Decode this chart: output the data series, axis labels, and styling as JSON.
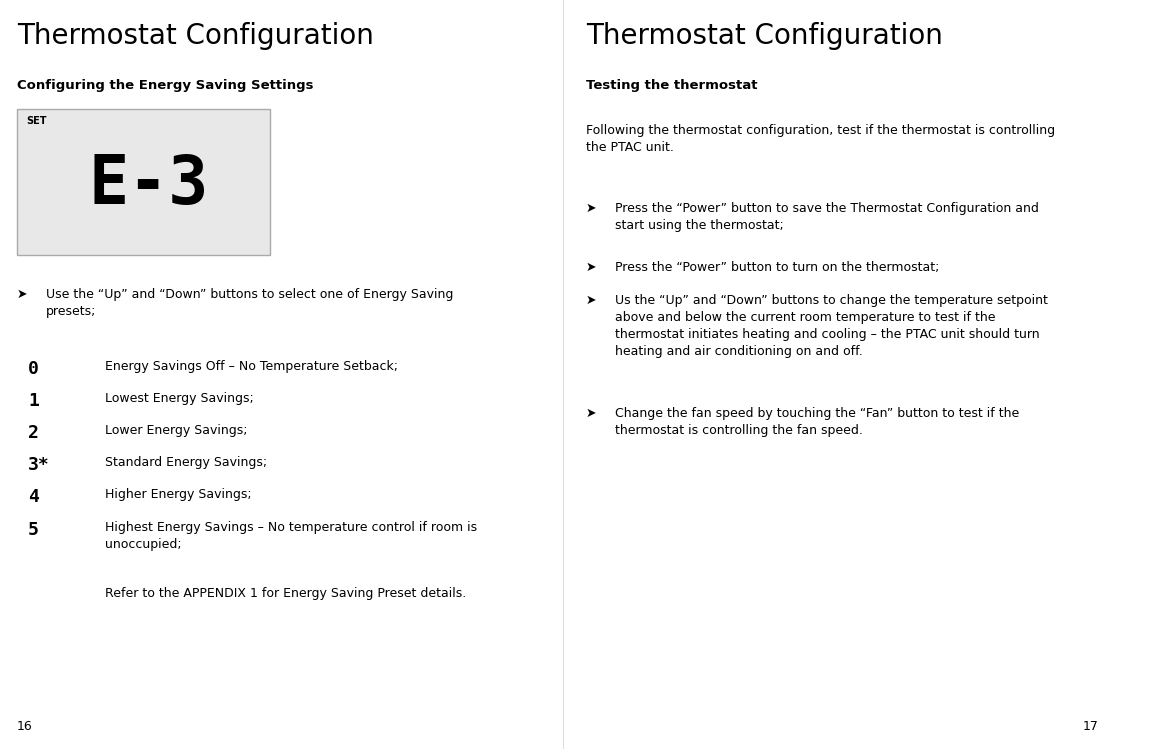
{
  "bg_color": "#ffffff",
  "left_title": "Thermostat Configuration",
  "left_subtitle": "Configuring the Energy Saving Settings",
  "display_bg": "#e8e8e8",
  "display_border": "#aaaaaa",
  "display_text": "E-3",
  "display_set_label": "SET",
  "left_bullet": "➤",
  "left_bullet_text": "Use the “Up” and “Down” buttons to select one of Energy Saving\npresets;",
  "presets": [
    {
      "num": "0",
      "desc": "Energy Savings Off – No Temperature Setback;"
    },
    {
      "num": "1",
      "desc": "Lowest Energy Savings;"
    },
    {
      "num": "2",
      "desc": "Lower Energy Savings;"
    },
    {
      "num": "3*",
      "desc": "Standard Energy Savings;"
    },
    {
      "num": "4",
      "desc": "Higher Energy Savings;"
    },
    {
      "num": "5",
      "desc": "Highest Energy Savings – No temperature control if room is\nunoccupied;"
    }
  ],
  "appendix_note": "Refer to the APPENDIX 1 for Energy Saving Preset details.",
  "page_num_left": "16",
  "right_title": "Thermostat Configuration",
  "right_subtitle": "Testing the thermostat",
  "right_intro": "Following the thermostat configuration, test if the thermostat is controlling\nthe PTAC unit.",
  "right_bullets": [
    "Press the “Power” button to save the Thermostat Configuration and\nstart using the thermostat;",
    "Press the “Power” button to turn on the thermostat;",
    "Us the “Up” and “Down” buttons to change the temperature setpoint\nabove and below the current room temperature to test if the\nthermostat initiates heating and cooling – the PTAC unit should turn\nheating and air conditioning on and off.",
    "Change the fan speed by touching the “Fan” button to test if the\nthermostat is controlling the fan speed."
  ],
  "page_num_right": "17"
}
